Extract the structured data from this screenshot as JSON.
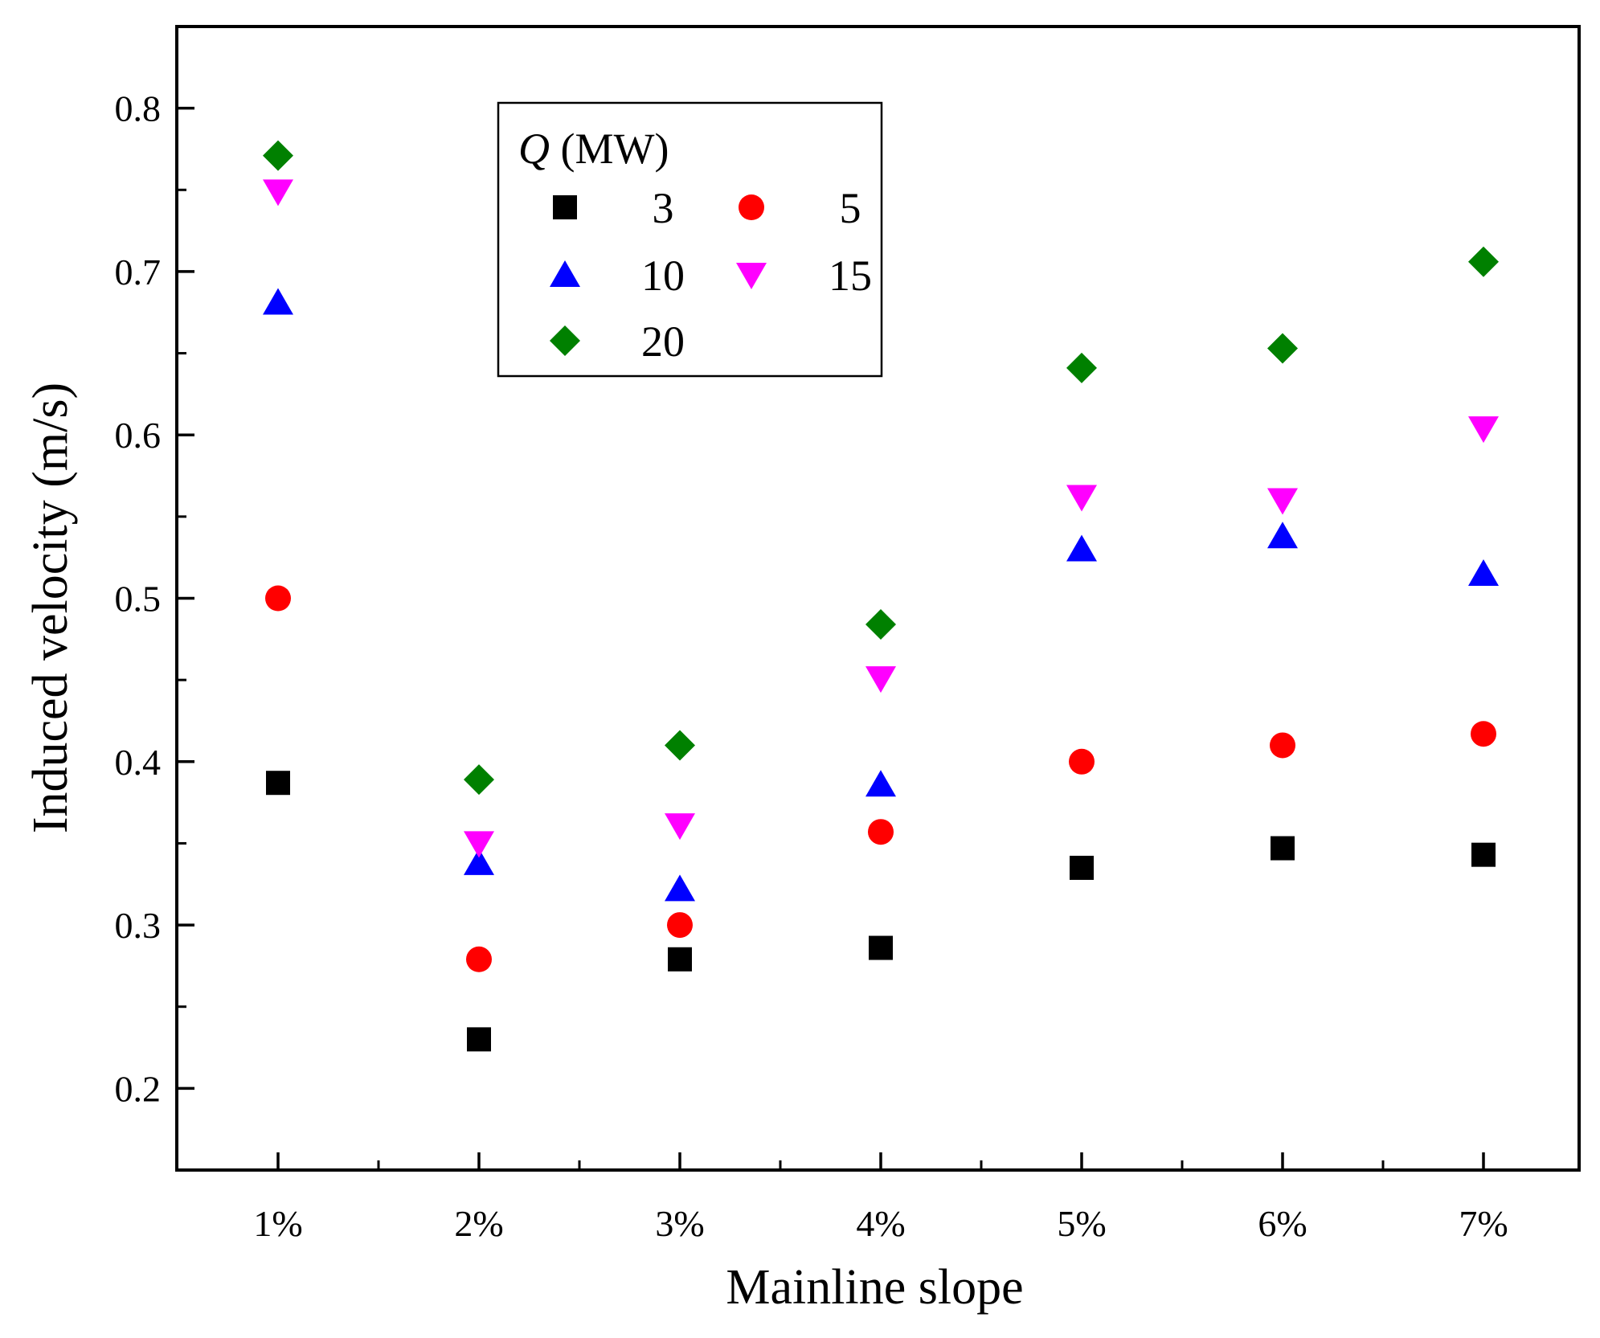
{
  "chart_data": {
    "type": "scatter",
    "title": "",
    "xlabel": "Mainline slope",
    "ylabel": "Induced velocity (m/s)",
    "categories": [
      "1%",
      "2%",
      "3%",
      "4%",
      "5%",
      "6%",
      "7%"
    ],
    "ylim": [
      0.15,
      0.85
    ],
    "yticks": [
      0.2,
      0.3,
      0.4,
      0.5,
      0.6,
      0.7,
      0.8
    ],
    "ytick_labels": [
      "0.2",
      "0.3",
      "0.4",
      "0.5",
      "0.6",
      "0.7",
      "0.8"
    ],
    "grid": false,
    "legend": {
      "title_symbol": "Q",
      "title_unit": "(MW)",
      "placement": "top-left"
    },
    "series": [
      {
        "name": "3",
        "marker": "square",
        "color": "#000000",
        "values": [
          0.387,
          0.23,
          0.279,
          0.286,
          0.335,
          0.347,
          0.343
        ]
      },
      {
        "name": "5",
        "marker": "circle",
        "color": "#ff0000",
        "values": [
          0.5,
          0.279,
          0.3,
          0.357,
          0.4,
          0.41,
          0.417
        ]
      },
      {
        "name": "10",
        "marker": "triangle-up",
        "color": "#0000ff",
        "values": [
          0.681,
          0.338,
          0.322,
          0.386,
          0.53,
          0.538,
          0.515
        ]
      },
      {
        "name": "15",
        "marker": "triangle-down",
        "color": "#ff00ff",
        "values": [
          0.749,
          0.35,
          0.361,
          0.451,
          0.562,
          0.56,
          0.604
        ]
      },
      {
        "name": "20",
        "marker": "diamond",
        "color": "#008000",
        "values": [
          0.771,
          0.389,
          0.41,
          0.484,
          0.641,
          0.653,
          0.706
        ]
      }
    ]
  }
}
